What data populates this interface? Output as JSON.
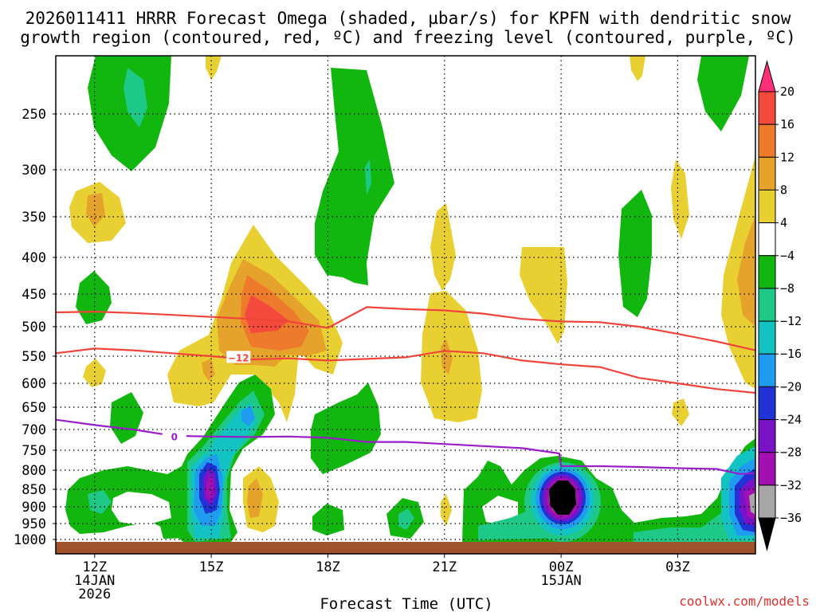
{
  "chart_data": {
    "type": "time-height cross section (filled contour)",
    "title_line1": "2026011411 HRRR Forecast Omega (shaded, µbar/s) for KPFN with dendritic snow",
    "title_line2": "growth region (contoured, red, ºC) and freezing level (contoured, purple, ºC)",
    "xlabel": "Forecast Time (UTC)",
    "credit": "coolwx.com/models",
    "x_ticks": [
      {
        "hour": 12,
        "line1": "12Z",
        "line2": "14JAN",
        "line3": "2026"
      },
      {
        "hour": 15,
        "line1": "15Z"
      },
      {
        "hour": 18,
        "line1": "18Z"
      },
      {
        "hour": 21,
        "line1": "21Z"
      },
      {
        "hour": 24,
        "line1": "00Z",
        "line2": "15JAN"
      },
      {
        "hour": 27,
        "line1": "03Z"
      }
    ],
    "x_range_hours": [
      11,
      29
    ],
    "y_ticks_hpa": [
      250,
      300,
      350,
      400,
      450,
      500,
      550,
      600,
      650,
      700,
      750,
      800,
      850,
      900,
      950,
      1000
    ],
    "y_range_hpa": [
      200,
      1020
    ],
    "colorbar": {
      "labels": [
        "20",
        "16",
        "12",
        "8",
        "4",
        "−4",
        "−8",
        "−12",
        "−16",
        "−20",
        "−24",
        "−28",
        "−32",
        "−36"
      ],
      "levels": [
        20,
        16,
        12,
        8,
        4,
        -4,
        -8,
        -12,
        -16,
        -20,
        -24,
        -28,
        -32,
        -36
      ],
      "colors": [
        "#ff2f7a",
        "#f44a3e",
        "#ee7a2b",
        "#e6a32b",
        "#e8d033",
        "#ffffff",
        "#11b70e",
        "#1ec886",
        "#13c2c2",
        "#1f9cef",
        "#2233d6",
        "#7a12c8",
        "#a30fb0",
        "#a6a6a6",
        "#000000"
      ]
    },
    "contours": [
      {
        "name": "dendritic -12C line",
        "color": "#f0443a",
        "label": "−12",
        "points": [
          [
            11,
            545
          ],
          [
            12,
            537
          ],
          [
            13,
            540
          ],
          [
            14,
            545
          ],
          [
            15,
            550
          ],
          [
            16,
            556
          ],
          [
            17,
            554
          ],
          [
            18,
            558
          ],
          [
            19,
            555
          ],
          [
            20,
            552
          ],
          [
            21,
            541
          ],
          [
            22,
            545
          ],
          [
            23,
            558
          ],
          [
            24,
            565
          ],
          [
            25,
            570
          ],
          [
            26,
            590
          ],
          [
            27,
            600
          ],
          [
            28,
            612
          ],
          [
            29,
            620
          ]
        ]
      },
      {
        "name": "dendritic upper line",
        "color": "#f0443a",
        "points": [
          [
            11,
            478
          ],
          [
            12,
            477
          ],
          [
            13,
            479
          ],
          [
            14,
            482
          ],
          [
            15,
            485
          ],
          [
            16,
            488
          ],
          [
            17,
            492
          ],
          [
            18,
            502
          ],
          [
            19,
            470
          ],
          [
            20,
            473
          ],
          [
            21,
            475
          ],
          [
            22,
            480
          ],
          [
            23,
            488
          ],
          [
            24,
            492
          ],
          [
            25,
            493
          ],
          [
            26,
            500
          ],
          [
            27,
            512
          ],
          [
            28,
            525
          ],
          [
            29,
            540
          ]
        ]
      },
      {
        "name": "freezing level 0C",
        "color": "#9b1cc9",
        "label": "0",
        "points": [
          [
            11,
            678
          ],
          [
            12,
            690
          ],
          [
            13,
            700
          ],
          [
            14,
            715
          ],
          [
            15,
            717
          ],
          [
            16,
            718
          ],
          [
            17,
            717
          ],
          [
            18,
            720
          ],
          [
            19,
            730
          ],
          [
            20,
            730
          ],
          [
            21,
            735
          ],
          [
            22,
            740
          ],
          [
            23,
            745
          ],
          [
            23.95,
            758
          ],
          [
            24,
            790
          ],
          [
            25,
            790
          ],
          [
            26,
            792
          ],
          [
            27,
            795
          ],
          [
            28,
            797
          ],
          [
            28.6,
            810
          ],
          [
            29,
            808
          ]
        ]
      }
    ],
    "features": [
      {
        "desc": "rising motion core",
        "hour": 16.5,
        "hpa": 495,
        "omega": 14
      },
      {
        "desc": "strong sinking",
        "hour": 15.0,
        "hpa": 830,
        "omega": -28
      },
      {
        "desc": "strongest sinking",
        "hour": 24.0,
        "hpa": 880,
        "omega": -36
      },
      {
        "desc": "strong sinking",
        "hour": 29.0,
        "hpa": 860,
        "omega": -32
      }
    ]
  }
}
